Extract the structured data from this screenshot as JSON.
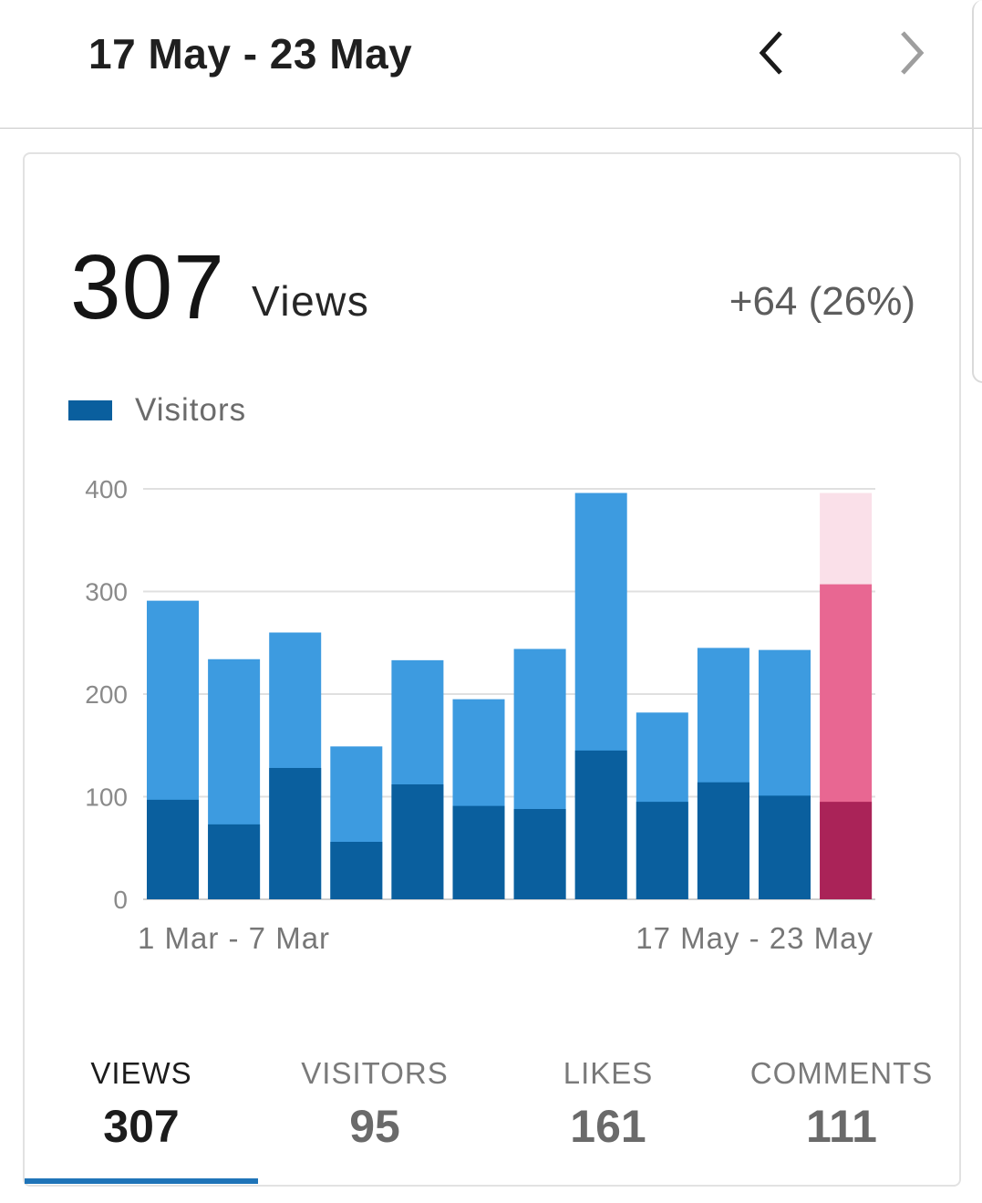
{
  "header": {
    "title": "17 May - 23 May"
  },
  "summary": {
    "value": "307",
    "label": "Views",
    "change": "+64 (26%)"
  },
  "legend": {
    "label": "Visitors"
  },
  "colors": {
    "views": "#3d9be0",
    "visitors": "#0a5f9e",
    "views_current": "#e86792",
    "visitors_current": "#aa2358",
    "projected_current": "#fae0e9"
  },
  "chart_data": {
    "type": "bar",
    "categories": [
      "1 Mar - 7 Mar",
      "",
      "",
      "",
      "",
      "",
      "",
      "",
      "",
      "",
      "",
      "17 May - 23 May"
    ],
    "xlabel_first": "1 Mar - 7 Mar",
    "xlabel_last": "17 May - 23 May",
    "series": [
      {
        "values": [
          291,
          234,
          260,
          149,
          233,
          195,
          244,
          396,
          182,
          245,
          243,
          307
        ]
      },
      {
        "name": "Visitors",
        "values": [
          97,
          73,
          128,
          56,
          112,
          91,
          88,
          145,
          95,
          114,
          101,
          95
        ]
      }
    ],
    "projected_last": 396,
    "yticks": [
      "0",
      "100",
      "200",
      "300",
      "400"
    ],
    "ylim": [
      0,
      400
    ],
    "grid": true,
    "legend_position": "top-left"
  },
  "tabs": [
    {
      "label": "VIEWS",
      "value": "307"
    },
    {
      "label": "VISITORS",
      "value": "95"
    },
    {
      "label": "LIKES",
      "value": "161"
    },
    {
      "label": "COMMENTS",
      "value": "111"
    }
  ],
  "icons": {
    "prev": "chevron-left-icon",
    "next": "chevron-right-icon"
  }
}
